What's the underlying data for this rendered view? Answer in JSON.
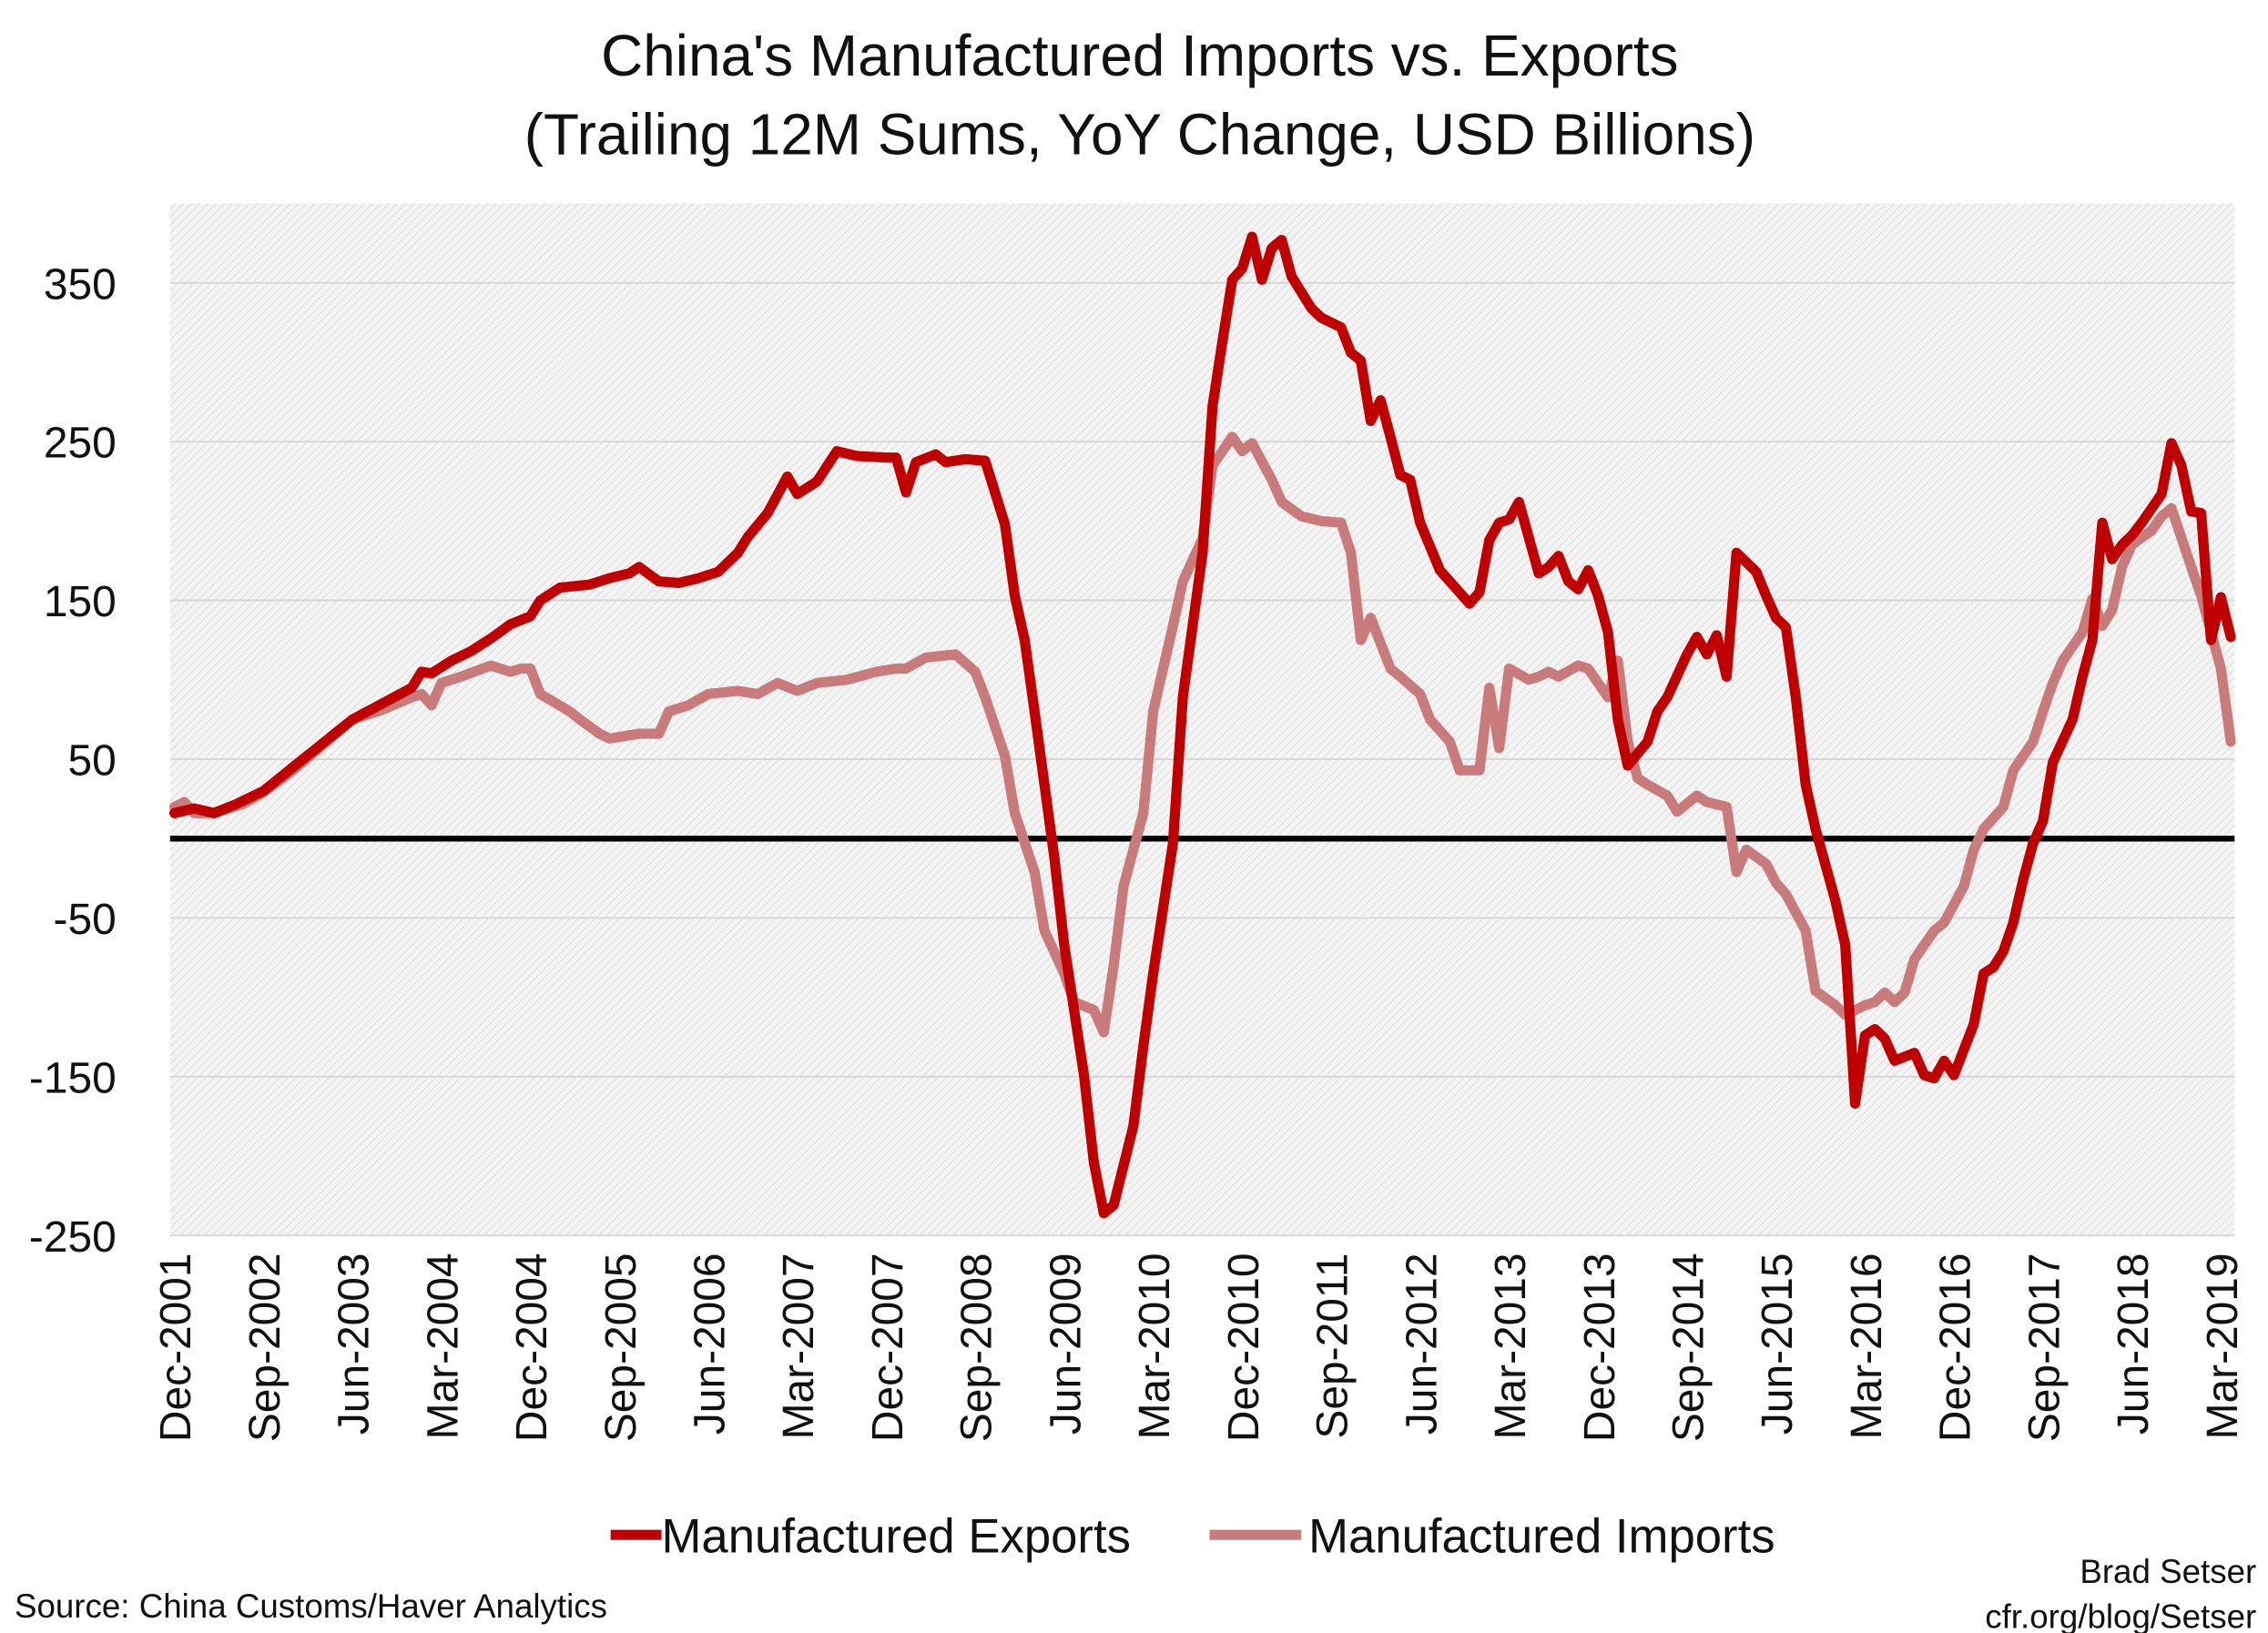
{
  "chart_data": {
    "type": "line",
    "title": "China's Manufactured Imports vs. Exports",
    "subtitle": "(Trailing 12M Sums, YoY Change, USD Billions)",
    "xlabel": "",
    "ylabel": "",
    "x_range": [
      "2001-12",
      "2019-04"
    ],
    "ylim": [
      -250,
      400
    ],
    "yticks": [
      350,
      250,
      150,
      50,
      -50,
      -150,
      -250
    ],
    "xtick_labels": [
      "Dec-2001",
      "Sep-2002",
      "Jun-2003",
      "Mar-2004",
      "Dec-2004",
      "Sep-2005",
      "Jun-2006",
      "Mar-2007",
      "Dec-2007",
      "Sep-2008",
      "Jun-2009",
      "Mar-2010",
      "Dec-2010",
      "Sep-2011",
      "Jun-2012",
      "Mar-2013",
      "Dec-2013",
      "Sep-2014",
      "Jun-2015",
      "Mar-2016",
      "Dec-2016",
      "Sep-2017",
      "Jun-2018",
      "Mar-2019"
    ],
    "grid": true,
    "zero_line": true,
    "legend_position": "bottom",
    "series": [
      {
        "name": "Manufactured Exports",
        "color": "#c00000",
        "points": [
          [
            "2001-12",
            16
          ],
          [
            "2002-02",
            19
          ],
          [
            "2002-04",
            16
          ],
          [
            "2002-06",
            21
          ],
          [
            "2002-09",
            30
          ],
          [
            "2002-12",
            45
          ],
          [
            "2003-03",
            60
          ],
          [
            "2003-06",
            75
          ],
          [
            "2003-09",
            85
          ],
          [
            "2003-12",
            95
          ],
          [
            "2004-01",
            105
          ],
          [
            "2004-02",
            104
          ],
          [
            "2004-04",
            112
          ],
          [
            "2004-06",
            118
          ],
          [
            "2004-08",
            126
          ],
          [
            "2004-10",
            135
          ],
          [
            "2004-12",
            140
          ],
          [
            "2005-01",
            150
          ],
          [
            "2005-03",
            158
          ],
          [
            "2005-06",
            160
          ],
          [
            "2005-08",
            164
          ],
          [
            "2005-10",
            167
          ],
          [
            "2005-11",
            171
          ],
          [
            "2006-01",
            162
          ],
          [
            "2006-03",
            161
          ],
          [
            "2006-05",
            164
          ],
          [
            "2006-07",
            168
          ],
          [
            "2006-09",
            180
          ],
          [
            "2006-10",
            190
          ],
          [
            "2006-12",
            205
          ],
          [
            "2007-02",
            228
          ],
          [
            "2007-03",
            217
          ],
          [
            "2007-05",
            225
          ],
          [
            "2007-07",
            244
          ],
          [
            "2007-09",
            241
          ],
          [
            "2007-12",
            240
          ],
          [
            "2008-01",
            240
          ],
          [
            "2008-02",
            218
          ],
          [
            "2008-03",
            237
          ],
          [
            "2008-05",
            242
          ],
          [
            "2008-06",
            237
          ],
          [
            "2008-08",
            239
          ],
          [
            "2008-10",
            238
          ],
          [
            "2008-12",
            198
          ],
          [
            "2009-01",
            153
          ],
          [
            "2009-02",
            125
          ],
          [
            "2009-03",
            80
          ],
          [
            "2009-05",
            -12
          ],
          [
            "2009-06",
            -67
          ],
          [
            "2009-08",
            -149
          ],
          [
            "2009-09",
            -204
          ],
          [
            "2009-10",
            -236
          ],
          [
            "2009-11",
            -231
          ],
          [
            "2010-01",
            -181
          ],
          [
            "2010-02",
            -131
          ],
          [
            "2010-03",
            -85
          ],
          [
            "2010-05",
            -3
          ],
          [
            "2010-06",
            89
          ],
          [
            "2010-08",
            180
          ],
          [
            "2010-09",
            272
          ],
          [
            "2010-10",
            313
          ],
          [
            "2010-11",
            352
          ],
          [
            "2010-12",
            359
          ],
          [
            "2011-01",
            379
          ],
          [
            "2011-02",
            352
          ],
          [
            "2011-03",
            372
          ],
          [
            "2011-04",
            377
          ],
          [
            "2011-05",
            354
          ],
          [
            "2011-07",
            334
          ],
          [
            "2011-08",
            328
          ],
          [
            "2011-10",
            322
          ],
          [
            "2011-11",
            306
          ],
          [
            "2011-12",
            301
          ],
          [
            "2012-01",
            263
          ],
          [
            "2012-02",
            276
          ],
          [
            "2012-03",
            253
          ],
          [
            "2012-04",
            229
          ],
          [
            "2012-05",
            226
          ],
          [
            "2012-06",
            199
          ],
          [
            "2012-08",
            169
          ],
          [
            "2012-09",
            162
          ],
          [
            "2012-11",
            148
          ],
          [
            "2012-12",
            155
          ],
          [
            "2013-01",
            188
          ],
          [
            "2013-02",
            199
          ],
          [
            "2013-03",
            201
          ],
          [
            "2013-04",
            212
          ],
          [
            "2013-06",
            167
          ],
          [
            "2013-07",
            171
          ],
          [
            "2013-08",
            178
          ],
          [
            "2013-09",
            162
          ],
          [
            "2013-10",
            157
          ],
          [
            "2013-11",
            169
          ],
          [
            "2013-12",
            153
          ],
          [
            "2014-01",
            130
          ],
          [
            "2014-02",
            75
          ],
          [
            "2014-03",
            46
          ],
          [
            "2014-05",
            61
          ],
          [
            "2014-06",
            80
          ],
          [
            "2014-07",
            89
          ],
          [
            "2014-09",
            116
          ],
          [
            "2014-10",
            127
          ],
          [
            "2014-11",
            116
          ],
          [
            "2014-12",
            128
          ],
          [
            "2015-01",
            102
          ],
          [
            "2015-02",
            180
          ],
          [
            "2015-04",
            168
          ],
          [
            "2015-05",
            153
          ],
          [
            "2015-06",
            139
          ],
          [
            "2015-07",
            133
          ],
          [
            "2015-08",
            89
          ],
          [
            "2015-09",
            34
          ],
          [
            "2015-10",
            6
          ],
          [
            "2015-12",
            -39
          ],
          [
            "2016-01",
            -67
          ],
          [
            "2016-02",
            -167
          ],
          [
            "2016-03",
            -124
          ],
          [
            "2016-04",
            -120
          ],
          [
            "2016-05",
            -126
          ],
          [
            "2016-06",
            -140
          ],
          [
            "2016-08",
            -135
          ],
          [
            "2016-09",
            -149
          ],
          [
            "2016-10",
            -151
          ],
          [
            "2016-11",
            -140
          ],
          [
            "2016-12",
            -149
          ],
          [
            "2017-02",
            -117
          ],
          [
            "2017-03",
            -85
          ],
          [
            "2017-04",
            -81
          ],
          [
            "2017-05",
            -71
          ],
          [
            "2017-06",
            -53
          ],
          [
            "2017-07",
            -26
          ],
          [
            "2017-08",
            -3
          ],
          [
            "2017-09",
            11
          ],
          [
            "2017-10",
            48
          ],
          [
            "2017-12",
            75
          ],
          [
            "2018-01",
            102
          ],
          [
            "2018-02",
            125
          ],
          [
            "2018-03",
            199
          ],
          [
            "2018-04",
            176
          ],
          [
            "2018-05",
            185
          ],
          [
            "2018-06",
            191
          ],
          [
            "2018-07",
            199
          ],
          [
            "2018-08",
            208
          ],
          [
            "2018-09",
            217
          ],
          [
            "2018-10",
            249
          ],
          [
            "2018-11",
            235
          ],
          [
            "2018-12",
            206
          ],
          [
            "2019-01",
            205
          ],
          [
            "2019-02",
            125
          ],
          [
            "2019-03",
            152
          ],
          [
            "2019-04",
            127
          ]
        ]
      },
      {
        "name": "Manufactured Imports",
        "color": "#c97b7b",
        "points": [
          [
            "2001-12",
            20
          ],
          [
            "2002-01",
            23
          ],
          [
            "2002-02",
            16
          ],
          [
            "2002-04",
            16
          ],
          [
            "2002-07",
            22
          ],
          [
            "2002-09",
            29
          ],
          [
            "2002-12",
            43
          ],
          [
            "2003-03",
            59
          ],
          [
            "2003-06",
            75
          ],
          [
            "2003-09",
            81
          ],
          [
            "2003-12",
            89
          ],
          [
            "2004-01",
            91
          ],
          [
            "2004-02",
            84
          ],
          [
            "2004-03",
            98
          ],
          [
            "2004-05",
            102
          ],
          [
            "2004-08",
            109
          ],
          [
            "2004-10",
            105
          ],
          [
            "2004-11",
            107
          ],
          [
            "2004-12",
            107
          ],
          [
            "2005-01",
            91
          ],
          [
            "2005-04",
            80
          ],
          [
            "2005-05",
            75
          ],
          [
            "2005-07",
            66
          ],
          [
            "2005-08",
            63
          ],
          [
            "2005-11",
            66
          ],
          [
            "2006-01",
            66
          ],
          [
            "2006-02",
            80
          ],
          [
            "2006-04",
            84
          ],
          [
            "2006-06",
            91
          ],
          [
            "2006-09",
            93
          ],
          [
            "2006-11",
            91
          ],
          [
            "2007-01",
            98
          ],
          [
            "2007-03",
            93
          ],
          [
            "2007-05",
            98
          ],
          [
            "2007-08",
            100
          ],
          [
            "2007-11",
            105
          ],
          [
            "2008-01",
            107
          ],
          [
            "2008-02",
            107
          ],
          [
            "2008-04",
            114
          ],
          [
            "2008-07",
            116
          ],
          [
            "2008-09",
            105
          ],
          [
            "2008-10",
            89
          ],
          [
            "2008-12",
            52
          ],
          [
            "2009-01",
            16
          ],
          [
            "2009-03",
            -21
          ],
          [
            "2009-04",
            -58
          ],
          [
            "2009-06",
            -85
          ],
          [
            "2009-07",
            -103
          ],
          [
            "2009-09",
            -108
          ],
          [
            "2009-10",
            -122
          ],
          [
            "2009-11",
            -80
          ],
          [
            "2009-12",
            -30
          ],
          [
            "2010-02",
            16
          ],
          [
            "2010-03",
            80
          ],
          [
            "2010-05",
            134
          ],
          [
            "2010-06",
            162
          ],
          [
            "2010-08",
            189
          ],
          [
            "2010-09",
            235
          ],
          [
            "2010-11",
            253
          ],
          [
            "2010-12",
            244
          ],
          [
            "2011-01",
            249
          ],
          [
            "2011-03",
            226
          ],
          [
            "2011-04",
            212
          ],
          [
            "2011-06",
            203
          ],
          [
            "2011-08",
            200
          ],
          [
            "2011-10",
            199
          ],
          [
            "2011-11",
            180
          ],
          [
            "2011-12",
            125
          ],
          [
            "2012-01",
            139
          ],
          [
            "2012-03",
            107
          ],
          [
            "2012-04",
            102
          ],
          [
            "2012-06",
            91
          ],
          [
            "2012-07",
            75
          ],
          [
            "2012-09",
            61
          ],
          [
            "2012-10",
            43
          ],
          [
            "2012-12",
            43
          ],
          [
            "2013-01",
            95
          ],
          [
            "2013-02",
            57
          ],
          [
            "2013-03",
            107
          ],
          [
            "2013-05",
            100
          ],
          [
            "2013-06",
            102
          ],
          [
            "2013-07",
            105
          ],
          [
            "2013-08",
            102
          ],
          [
            "2013-10",
            109
          ],
          [
            "2013-11",
            107
          ],
          [
            "2014-01",
            89
          ],
          [
            "2014-02",
            112
          ],
          [
            "2014-03",
            61
          ],
          [
            "2014-04",
            38
          ],
          [
            "2014-05",
            34
          ],
          [
            "2014-07",
            27
          ],
          [
            "2014-08",
            17
          ],
          [
            "2014-10",
            27
          ],
          [
            "2014-11",
            23
          ],
          [
            "2015-01",
            20
          ],
          [
            "2015-02",
            -21
          ],
          [
            "2015-03",
            -7
          ],
          [
            "2015-05",
            -16
          ],
          [
            "2015-06",
            -28
          ],
          [
            "2015-07",
            -35
          ],
          [
            "2015-09",
            -58
          ],
          [
            "2015-10",
            -96
          ],
          [
            "2015-12",
            -105
          ],
          [
            "2016-01",
            -111
          ],
          [
            "2016-03",
            -105
          ],
          [
            "2016-04",
            -103
          ],
          [
            "2016-05",
            -97
          ],
          [
            "2016-06",
            -103
          ],
          [
            "2016-07",
            -97
          ],
          [
            "2016-08",
            -76
          ],
          [
            "2016-10",
            -58
          ],
          [
            "2016-11",
            -53
          ],
          [
            "2017-01",
            -30
          ],
          [
            "2017-02",
            -7
          ],
          [
            "2017-03",
            6
          ],
          [
            "2017-05",
            20
          ],
          [
            "2017-06",
            43
          ],
          [
            "2017-08",
            61
          ],
          [
            "2017-09",
            80
          ],
          [
            "2017-10",
            98
          ],
          [
            "2017-11",
            112
          ],
          [
            "2018-01",
            130
          ],
          [
            "2018-02",
            151
          ],
          [
            "2018-03",
            134
          ],
          [
            "2018-04",
            144
          ],
          [
            "2018-05",
            171
          ],
          [
            "2018-06",
            185
          ],
          [
            "2018-08",
            194
          ],
          [
            "2018-09",
            203
          ],
          [
            "2018-10",
            208
          ],
          [
            "2018-12",
            171
          ],
          [
            "2019-01",
            153
          ],
          [
            "2019-02",
            130
          ],
          [
            "2019-03",
            107
          ],
          [
            "2019-04",
            61
          ]
        ]
      }
    ]
  },
  "footer": {
    "source": "Source: China Customs/Haver Analytics",
    "author": "Brad Setser",
    "url": "cfr.org/blog/Setser"
  }
}
